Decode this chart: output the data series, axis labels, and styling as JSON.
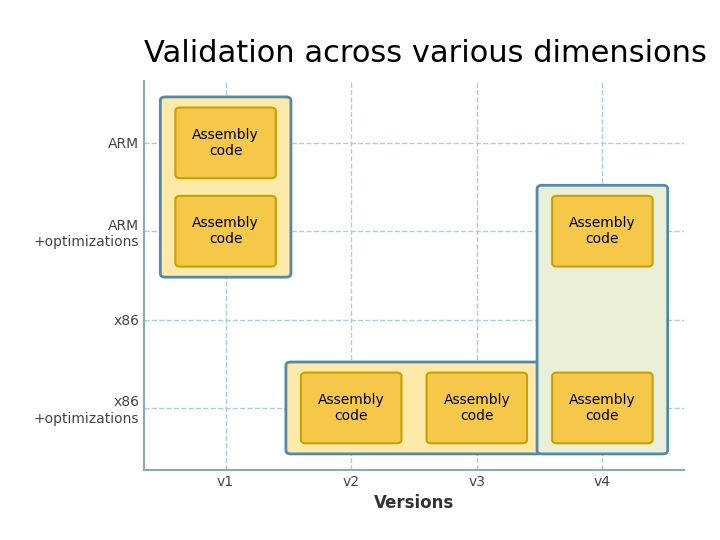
{
  "title": "Validation across various dimensions",
  "title_fontsize": 22,
  "xlabel": "Versions",
  "xlabel_fontsize": 12,
  "background_color": "#ffffff",
  "grid_color": "#aaccee",
  "axis_color": "#88aabb",
  "ytick_labels": [
    "ARM",
    "ARM\n+optimizations",
    "x86",
    "x86\n+optimizations"
  ],
  "xtick_labels": [
    "v1",
    "v2",
    "v3",
    "v4"
  ],
  "cell_label": "Assembly\ncode",
  "cell_label_fontsize": 10,
  "inner_box_color": "#f5c84a",
  "inner_box_edge_color": "#c8a000",
  "outer_box_color_orange": "#fde9a8",
  "outer_box_color_green": "#eaf0d8",
  "outer_box_edge_color": "#5588aa",
  "tick_fontsize": 10
}
